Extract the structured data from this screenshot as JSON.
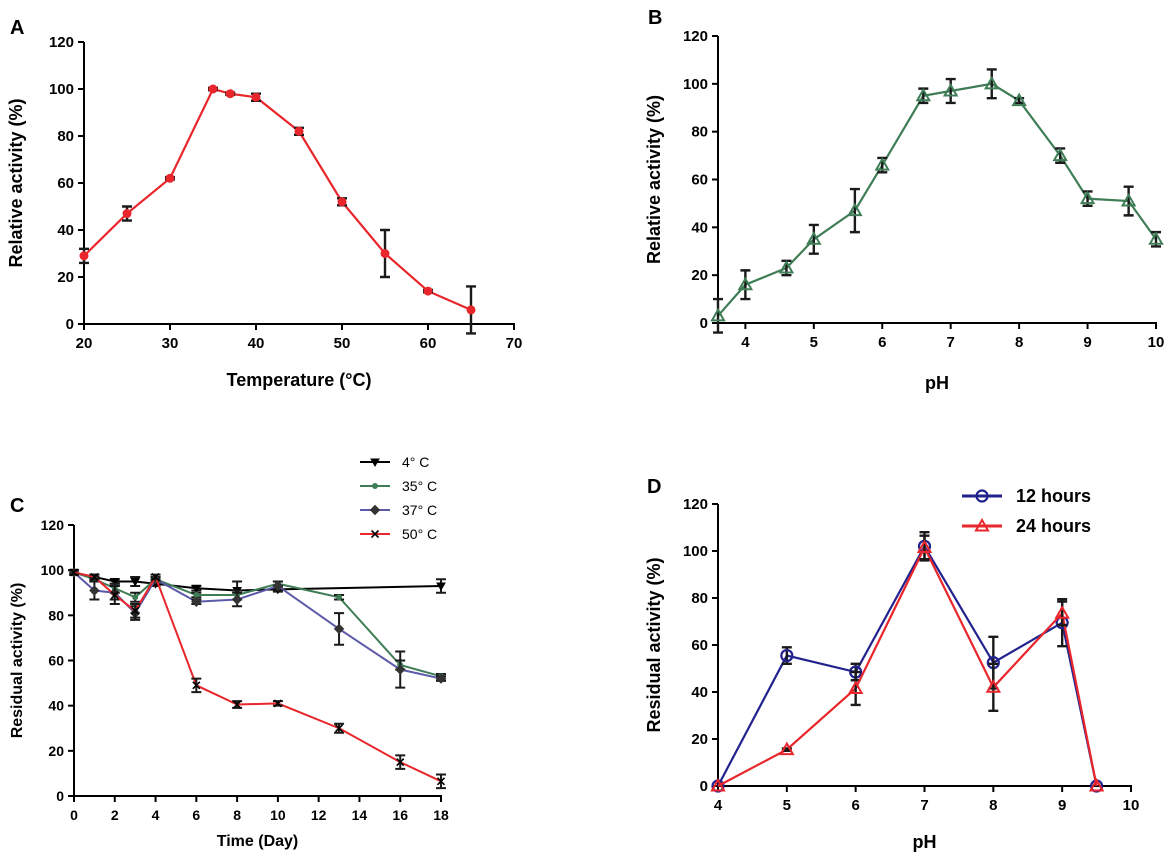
{
  "chart_data": [
    {
      "panel": "A",
      "type": "line",
      "title": "",
      "xlabel": "Temperature (°C)",
      "ylabel": "Relative activity (%)",
      "xlim": [
        20,
        70
      ],
      "ylim": [
        0,
        120
      ],
      "xticks": [
        20,
        30,
        40,
        50,
        60,
        70
      ],
      "yticks": [
        0,
        20,
        40,
        60,
        80,
        100,
        120
      ],
      "series": [
        {
          "name": "activity",
          "color": "#e8262b",
          "marker": "circle",
          "x": [
            20,
            25,
            30,
            35,
            37,
            40,
            45,
            50,
            55,
            60,
            65
          ],
          "y": [
            29,
            47,
            62,
            100,
            98,
            96.5,
            82,
            52,
            30,
            14,
            6
          ],
          "err": [
            3,
            3,
            0.5,
            0.5,
            0.5,
            1.5,
            1.5,
            1.5,
            10,
            0.5,
            10
          ]
        }
      ]
    },
    {
      "panel": "B",
      "type": "line",
      "title": "",
      "xlabel": "pH",
      "ylabel": "Relative activity (%)",
      "xlim": [
        3.6,
        10
      ],
      "ylim": [
        0,
        120
      ],
      "xticks": [
        4,
        5,
        6,
        7,
        8,
        9,
        10
      ],
      "yticks": [
        0,
        20,
        40,
        60,
        80,
        100,
        120
      ],
      "series": [
        {
          "name": "activity",
          "color": "#3f7d57",
          "marker": "triangle-open",
          "x": [
            3.6,
            4,
            4.6,
            5,
            5.6,
            6,
            6.6,
            7,
            7.6,
            8,
            8.6,
            9,
            9.6,
            10
          ],
          "y": [
            3,
            16,
            23,
            35,
            47,
            66,
            95,
            97,
            100,
            93,
            70,
            52,
            51,
            35
          ],
          "err": [
            7,
            6,
            3,
            6,
            9,
            3,
            3,
            5,
            6,
            1,
            3,
            3,
            6,
            3
          ]
        }
      ]
    },
    {
      "panel": "C",
      "type": "line",
      "title": "",
      "xlabel": "Time (Day)",
      "ylabel": "Residual activity (%)",
      "xlim": [
        0,
        18
      ],
      "ylim": [
        0,
        120
      ],
      "xticks": [
        0,
        2,
        4,
        6,
        8,
        10,
        12,
        14,
        16,
        18
      ],
      "yticks": [
        0,
        20,
        40,
        60,
        80,
        100,
        120
      ],
      "legend_position": "top-right",
      "series": [
        {
          "name": "4° C",
          "color": "#000000",
          "marker": "triangle-down",
          "x": [
            0,
            1,
            2,
            3,
            4,
            6,
            8,
            10,
            18
          ],
          "y": [
            99,
            97,
            95,
            95,
            94,
            92,
            91,
            91.5,
            93
          ],
          "err": [
            1,
            1,
            1,
            2,
            1,
            1,
            4,
            1,
            3
          ]
        },
        {
          "name": "35° C",
          "color": "#3f7d57",
          "marker": "dot",
          "x": [
            0,
            1,
            2,
            3,
            4,
            6,
            8,
            10,
            13,
            16,
            18
          ],
          "y": [
            99,
            96,
            92,
            88,
            96,
            89,
            89,
            94,
            88,
            58,
            53
          ],
          "err": [
            1,
            1,
            2,
            2,
            1,
            1,
            2,
            1,
            1,
            2,
            1
          ]
        },
        {
          "name": "37° C",
          "color": "#5c5aa8",
          "marker": "diamond",
          "x": [
            0,
            1,
            2,
            3,
            4,
            6,
            8,
            10,
            13,
            16,
            18
          ],
          "y": [
            99,
            91,
            90,
            81,
            96,
            86,
            87,
            93,
            74,
            56,
            52
          ],
          "err": [
            1,
            4,
            3,
            3,
            1,
            1,
            3,
            2,
            7,
            8,
            1
          ]
        },
        {
          "name": "50° C",
          "color": "#e8262b",
          "marker": "x",
          "x": [
            0,
            1,
            2,
            3,
            4,
            6,
            8,
            10,
            13,
            16,
            18
          ],
          "y": [
            99,
            97,
            89,
            82,
            97,
            49,
            40.5,
            41,
            30,
            15,
            6.5
          ],
          "err": [
            1,
            1,
            4,
            3,
            1,
            3,
            1.5,
            1,
            2,
            3,
            3
          ]
        }
      ]
    },
    {
      "panel": "D",
      "type": "line",
      "title": "",
      "xlabel": "pH",
      "ylabel": "Residual activity (%)",
      "xlim": [
        4,
        10
      ],
      "ylim": [
        0,
        120
      ],
      "xticks": [
        4,
        5,
        6,
        7,
        8,
        9,
        10
      ],
      "yticks": [
        0,
        20,
        40,
        60,
        80,
        100,
        120
      ],
      "legend_position": "top-right",
      "series": [
        {
          "name": "12 hours",
          "color": "#22228f",
          "marker": "circle-open",
          "x": [
            4,
            5,
            6,
            7,
            8,
            9,
            9.5
          ],
          "y": [
            0,
            55.5,
            48.5,
            102,
            52.5,
            69.5,
            0
          ],
          "err": [
            0,
            3.5,
            3.5,
            6,
            11,
            10,
            0
          ]
        },
        {
          "name": "24 hours",
          "color": "#e8262b",
          "marker": "triangle-open",
          "x": [
            4,
            5,
            6,
            7,
            8,
            9,
            9.5
          ],
          "y": [
            0,
            15.5,
            41.5,
            101.5,
            42,
            73.5,
            0
          ],
          "err": [
            0,
            0.5,
            7,
            5,
            10,
            5,
            0
          ]
        }
      ]
    }
  ]
}
